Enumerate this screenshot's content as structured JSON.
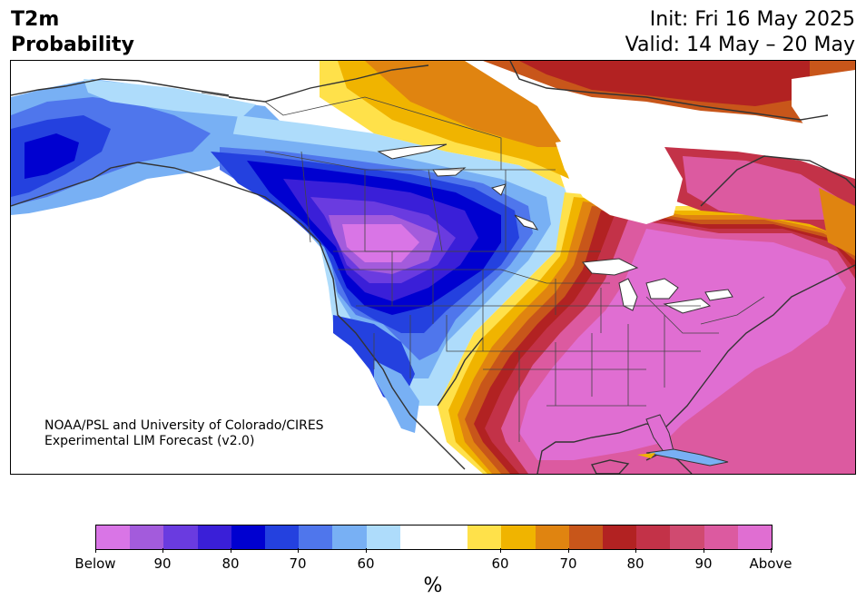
{
  "title": {
    "left_line1": "T2m",
    "left_line2": "Probability",
    "right_line1": "Init: Fri 16 May 2025",
    "right_line2": "Valid: 14 May – 20 May"
  },
  "credit": {
    "line1": "NOAA/PSL and University of Colorado/CIRES",
    "line2": "Experimental LIM Forecast (v2.0)"
  },
  "colorbar": {
    "colors": [
      "#d975e6",
      "#a35bdc",
      "#6a3be0",
      "#3a1fd8",
      "#0000d0",
      "#2441df",
      "#4f76ec",
      "#78b0f4",
      "#aedcfb",
      "#ffffff",
      "#ffffff",
      "#ffe14a",
      "#f0b400",
      "#e08410",
      "#c8561a",
      "#b22222",
      "#c33248",
      "#d04a70",
      "#dc5aa0",
      "#e06ed2"
    ],
    "tick_labels": [
      "Below",
      "90",
      "80",
      "70",
      "60",
      "60",
      "70",
      "80",
      "90",
      "Above"
    ],
    "unit": "%"
  },
  "map": {
    "region": "North America",
    "below_colors": {
      "deep": "#0000d0",
      "mid": "#6a3be0",
      "far": "#d975e6",
      "light": "#78b0f4"
    },
    "above_colors": {
      "far": "#e06ed2",
      "high": "#dc5aa0",
      "mid": "#b22222",
      "low": "#f0b400"
    }
  }
}
